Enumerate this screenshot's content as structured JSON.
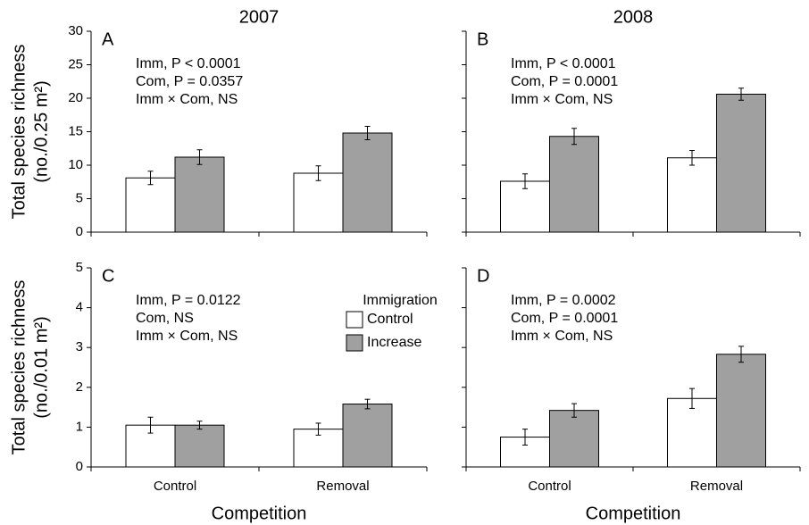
{
  "chart_data": [
    {
      "type": "bar",
      "title": "2007",
      "panel_label": "A",
      "ylabel": [
        "Total species richness",
        "(no./0.25 m²)"
      ],
      "categories": [
        null,
        null
      ],
      "series": [
        {
          "color": "#ffffff",
          "values": [
            8.1,
            8.8
          ],
          "errors": [
            1.0,
            1.1
          ]
        },
        {
          "color": "#a0a0a0",
          "values": [
            11.2,
            14.8
          ],
          "errors": [
            1.1,
            1.0
          ]
        }
      ],
      "ylim": [
        0,
        30
      ],
      "yticks": [
        0,
        5,
        10,
        15,
        20,
        25,
        30
      ],
      "ytick_labels": true,
      "annotations": [
        "Imm, P < 0.0001",
        "Com, P = 0.0357",
        "Imm × Com, NS"
      ]
    },
    {
      "type": "bar",
      "title": "2008",
      "panel_label": "B",
      "categories": [
        null,
        null
      ],
      "series": [
        {
          "color": "#ffffff",
          "values": [
            7.6,
            11.1
          ],
          "errors": [
            1.1,
            1.1
          ]
        },
        {
          "color": "#a0a0a0",
          "values": [
            14.3,
            20.6
          ],
          "errors": [
            1.2,
            0.9
          ]
        }
      ],
      "ylim": [
        0,
        30
      ],
      "yticks": [
        0,
        5,
        10,
        15,
        20,
        25,
        30
      ],
      "ytick_labels": false,
      "annotations": [
        "Imm, P < 0.0001",
        "Com, P = 0.0001",
        "Imm × Com, NS"
      ]
    },
    {
      "type": "bar",
      "panel_label": "C",
      "ylabel": [
        "Total species richness",
        "(no./0.01 m²)"
      ],
      "xlabel": "Competition",
      "categories": [
        "Control",
        "Removal"
      ],
      "series": [
        {
          "name": "Control",
          "color": "#ffffff",
          "values": [
            1.05,
            0.95
          ],
          "errors": [
            0.2,
            0.15
          ]
        },
        {
          "name": "Increase",
          "color": "#a0a0a0",
          "values": [
            1.05,
            1.58
          ],
          "errors": [
            0.1,
            0.12
          ]
        }
      ],
      "legend_title": "Immigration",
      "ylim": [
        0,
        5
      ],
      "yticks": [
        0,
        1,
        2,
        3,
        4,
        5
      ],
      "ytick_labels": true,
      "annotations": [
        "Imm, P = 0.0122",
        "Com, NS",
        "Imm × Com, NS"
      ]
    },
    {
      "type": "bar",
      "panel_label": "D",
      "xlabel": "Competition",
      "categories": [
        "Control",
        "Removal"
      ],
      "series": [
        {
          "color": "#ffffff",
          "values": [
            0.75,
            1.72
          ],
          "errors": [
            0.2,
            0.25
          ]
        },
        {
          "color": "#a0a0a0",
          "values": [
            1.42,
            2.83
          ],
          "errors": [
            0.17,
            0.2
          ]
        }
      ],
      "ylim": [
        0,
        5
      ],
      "yticks": [
        0,
        1,
        2,
        3,
        4,
        5
      ],
      "ytick_labels": false,
      "annotations": [
        "Imm, P = 0.0002",
        "Com, P = 0.0001",
        "Imm × Com, NS"
      ]
    }
  ]
}
